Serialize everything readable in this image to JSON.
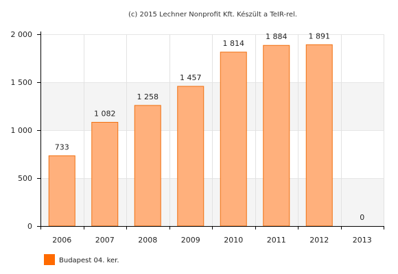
{
  "credit": "(c) 2015 Lechner Nonprofit Kft. Készült a TeIR-rel.",
  "chart_data": {
    "type": "bar",
    "title": "",
    "xlabel": "",
    "ylabel": "",
    "categories": [
      "2006",
      "2007",
      "2008",
      "2009",
      "2010",
      "2011",
      "2012",
      "2013"
    ],
    "series": [
      {
        "name": "Budapest 04. ker.",
        "values": [
          733,
          1082,
          1258,
          1457,
          1814,
          1884,
          1891,
          0
        ],
        "value_labels": [
          "733",
          "1 082",
          "1 258",
          "1 457",
          "1 814",
          "1 884",
          "1 891",
          "0"
        ]
      }
    ],
    "ylim": [
      0,
      2000
    ],
    "yticks": [
      0,
      500,
      1000,
      1500,
      2000
    ],
    "ytick_labels": [
      "0",
      "500",
      "1 000",
      "1 500",
      "2 000"
    ],
    "grid": true,
    "legend_position": "bottom-left",
    "colors": {
      "bar_fill": "#ffb07c",
      "bar_stroke": "#f07010",
      "legend_swatch": "#ff6a00",
      "band": "#f4f4f4",
      "axis": "#000000"
    }
  }
}
